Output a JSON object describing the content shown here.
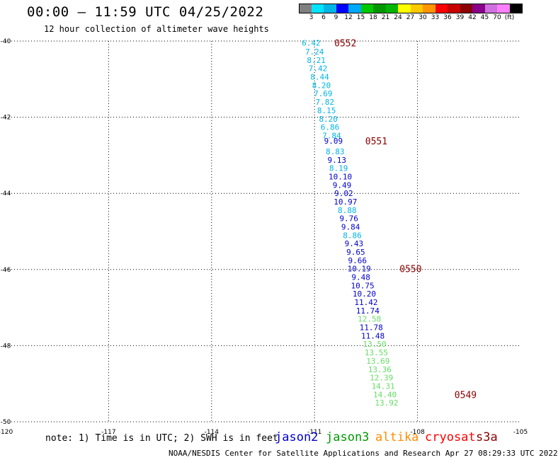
{
  "header": {
    "title": "00:00 – 11:59 UTC 04/25/2022",
    "subtitle": "12 hour collection of altimeter wave heights"
  },
  "colorbar": {
    "colors": [
      "#808080",
      "#00e5ff",
      "#00b5e6",
      "#0000ff",
      "#00a8ff",
      "#00c800",
      "#009600",
      "#00b400",
      "#ffff00",
      "#ffc800",
      "#ff9600",
      "#ff0000",
      "#c80000",
      "#8b0000",
      "#8b008b",
      "#d070e0",
      "#ff80ff",
      "#000000"
    ],
    "labels": [
      "3",
      "6",
      "9",
      "12",
      "15",
      "18",
      "21",
      "24",
      "27",
      "30",
      "33",
      "36",
      "39",
      "42",
      "45",
      "70",
      "(ft)"
    ]
  },
  "footer": {
    "note": "note:  1) Time is in UTC; 2) SWH is in feet",
    "credit": "NOAA/NESDIS Center for Satellite Applications and Research   Apr 27 08:29:33 UTC 2022",
    "satellites": [
      {
        "name": "jason2",
        "color": "#0000cc"
      },
      {
        "name": "jason3",
        "color": "#009900"
      },
      {
        "name": "altika",
        "color": "#ff8c00"
      },
      {
        "name": "cryosat",
        "color": "#ff0000"
      },
      {
        "name": "s3a",
        "color": "#8b0000"
      }
    ]
  },
  "chart_data": {
    "type": "scatter",
    "title": "00:00 – 11:59 UTC 04/25/2022",
    "subtitle": "12 hour collection of altimeter wave heights",
    "xlim": [
      -120,
      -105
    ],
    "ylim": [
      -50,
      -40
    ],
    "x_ticks": [
      -120,
      -117,
      -114,
      -111,
      -108,
      -105
    ],
    "x_tick_labels": [
      "-120",
      "-117",
      "-114",
      "-111",
      "-108",
      "-105"
    ],
    "y_ticks": [
      -40,
      -42,
      -44,
      -46,
      -48,
      -50
    ],
    "y_tick_labels": [
      "-40",
      "-42",
      "-44",
      "-46",
      "-48",
      "-50"
    ],
    "grid": true,
    "points": [
      {
        "lon": -111.1,
        "lat": -40.05,
        "label": "6.42",
        "color": "#00b5e6"
      },
      {
        "lon": -111.0,
        "lat": -40.28,
        "label": "7.24",
        "color": "#00b5e6"
      },
      {
        "lon": -110.95,
        "lat": -40.5,
        "label": "8.21",
        "color": "#00b5e6"
      },
      {
        "lon": -110.9,
        "lat": -40.72,
        "label": "7.42",
        "color": "#00b5e6"
      },
      {
        "lon": -110.85,
        "lat": -40.94,
        "label": "8.44",
        "color": "#00b5e6"
      },
      {
        "lon": -110.8,
        "lat": -41.16,
        "label": "8.20",
        "color": "#00b5e6"
      },
      {
        "lon": -110.75,
        "lat": -41.38,
        "label": "7.69",
        "color": "#00b5e6"
      },
      {
        "lon": -110.7,
        "lat": -41.6,
        "label": "7.82",
        "color": "#00b5e6"
      },
      {
        "lon": -110.65,
        "lat": -41.82,
        "label": "8.15",
        "color": "#00b5e6"
      },
      {
        "lon": -110.6,
        "lat": -42.04,
        "label": "8.20",
        "color": "#00b5e6"
      },
      {
        "lon": -110.55,
        "lat": -42.26,
        "label": "6.86",
        "color": "#00b5e6"
      },
      {
        "lon": -110.5,
        "lat": -42.48,
        "label": "7.84",
        "color": "#00b5e6"
      },
      {
        "lon": -110.45,
        "lat": -42.62,
        "label": "9.09",
        "color": "#0000cc"
      },
      {
        "lon": -110.4,
        "lat": -42.9,
        "label": "8.83",
        "color": "#00b5e6"
      },
      {
        "lon": -110.35,
        "lat": -43.12,
        "label": "9.13",
        "color": "#0000cc"
      },
      {
        "lon": -110.3,
        "lat": -43.34,
        "label": "8.19",
        "color": "#00b5e6"
      },
      {
        "lon": -110.25,
        "lat": -43.56,
        "label": "10.10",
        "color": "#0000cc"
      },
      {
        "lon": -110.2,
        "lat": -43.78,
        "label": "9.49",
        "color": "#0000cc"
      },
      {
        "lon": -110.15,
        "lat": -44.0,
        "label": "9.02",
        "color": "#0000cc"
      },
      {
        "lon": -110.1,
        "lat": -44.22,
        "label": "10.97",
        "color": "#0000cc"
      },
      {
        "lon": -110.05,
        "lat": -44.44,
        "label": "8.88",
        "color": "#00b5e6"
      },
      {
        "lon": -110.0,
        "lat": -44.66,
        "label": "9.76",
        "color": "#0000cc"
      },
      {
        "lon": -109.95,
        "lat": -44.88,
        "label": "9.84",
        "color": "#0000cc"
      },
      {
        "lon": -109.9,
        "lat": -45.1,
        "label": "8.86",
        "color": "#00b5e6"
      },
      {
        "lon": -109.85,
        "lat": -45.32,
        "label": "9.43",
        "color": "#0000cc"
      },
      {
        "lon": -109.8,
        "lat": -45.54,
        "label": "9.65",
        "color": "#0000cc"
      },
      {
        "lon": -109.75,
        "lat": -45.76,
        "label": "9.66",
        "color": "#0000cc"
      },
      {
        "lon": -109.7,
        "lat": -45.98,
        "label": "10.19",
        "color": "#0000cc"
      },
      {
        "lon": -109.65,
        "lat": -46.2,
        "label": "9.48",
        "color": "#0000cc"
      },
      {
        "lon": -109.6,
        "lat": -46.42,
        "label": "10.75",
        "color": "#0000cc"
      },
      {
        "lon": -109.55,
        "lat": -46.64,
        "label": "10.20",
        "color": "#0000cc"
      },
      {
        "lon": -109.5,
        "lat": -46.86,
        "label": "11.42",
        "color": "#0000cc"
      },
      {
        "lon": -109.45,
        "lat": -47.08,
        "label": "11.74",
        "color": "#0000cc"
      },
      {
        "lon": -109.4,
        "lat": -47.3,
        "label": "12.58",
        "color": "#66dd66"
      },
      {
        "lon": -109.35,
        "lat": -47.52,
        "label": "11.78",
        "color": "#0000cc"
      },
      {
        "lon": -109.3,
        "lat": -47.74,
        "label": "11.48",
        "color": "#0000cc"
      },
      {
        "lon": -109.25,
        "lat": -47.96,
        "label": "13.50",
        "color": "#66dd66"
      },
      {
        "lon": -109.2,
        "lat": -48.18,
        "label": "13.55",
        "color": "#66dd66"
      },
      {
        "lon": -109.15,
        "lat": -48.4,
        "label": "13.69",
        "color": "#66dd66"
      },
      {
        "lon": -109.1,
        "lat": -48.62,
        "label": "13.36",
        "color": "#66dd66"
      },
      {
        "lon": -109.05,
        "lat": -48.84,
        "label": "12.39",
        "color": "#66dd66"
      },
      {
        "lon": -109.0,
        "lat": -49.06,
        "label": "14.31",
        "color": "#66dd66"
      },
      {
        "lon": -108.95,
        "lat": -49.28,
        "label": "14.40",
        "color": "#66dd66"
      },
      {
        "lon": -108.9,
        "lat": -49.5,
        "label": "13.92",
        "color": "#66dd66"
      }
    ],
    "time_labels": [
      {
        "lon": -110.1,
        "lat": -40.05,
        "label": "0552",
        "color": "#8b0000"
      },
      {
        "lon": -109.2,
        "lat": -42.62,
        "label": "0551",
        "color": "#8b0000"
      },
      {
        "lon": -108.2,
        "lat": -45.98,
        "label": "0550",
        "color": "#8b0000"
      },
      {
        "lon": -106.6,
        "lat": -49.28,
        "label": "0549",
        "color": "#8b0000"
      }
    ]
  }
}
